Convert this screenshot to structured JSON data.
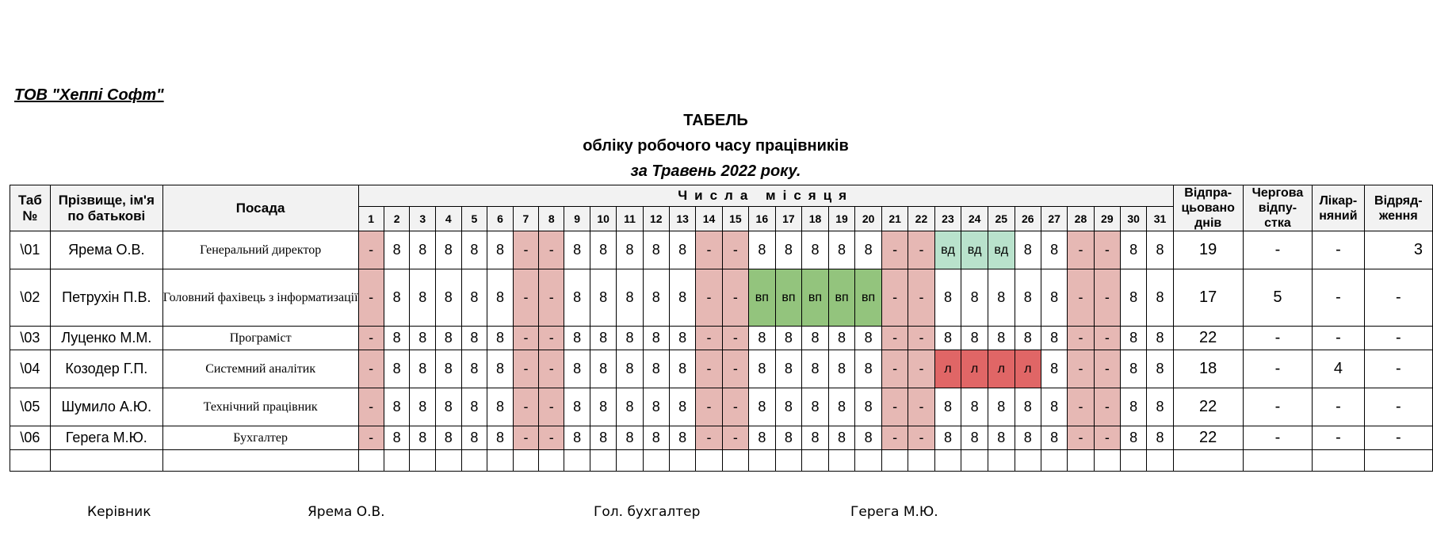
{
  "company": "ТОВ \"Хеппі Софт\"",
  "title": {
    "line1": "ТАБЕЛЬ",
    "line2": "обліку робочого часу працівників",
    "line3": "за Травень 2022 року."
  },
  "headers": {
    "tab_no_1": "Таб",
    "tab_no_2": "№",
    "name_1": "Прізвище, ім'я",
    "name_2": "по батькові",
    "position": "Посада",
    "days_group": "Числа місяця",
    "worked_1": "Відпра-",
    "worked_2": "цьовано",
    "worked_3": "днів",
    "vacation_1": "Чергова",
    "vacation_2": "відпу-",
    "vacation_3": "стка",
    "sick_1": "Лікар-",
    "sick_2": "няний",
    "trip_1": "Відряд-",
    "trip_2": "ження",
    "days": [
      "1",
      "2",
      "3",
      "4",
      "5",
      "6",
      "7",
      "8",
      "9",
      "10",
      "11",
      "12",
      "13",
      "14",
      "15",
      "16",
      "17",
      "18",
      "19",
      "20",
      "21",
      "22",
      "23",
      "24",
      "25",
      "26",
      "27",
      "28",
      "29",
      "30",
      "31"
    ]
  },
  "rows": [
    {
      "tab": "\\01",
      "name": "Ярема О.В.",
      "position": "Генеральний директор",
      "days": [
        "-",
        "8",
        "8",
        "8",
        "8",
        "8",
        "-",
        "-",
        "8",
        "8",
        "8",
        "8",
        "8",
        "-",
        "-",
        "8",
        "8",
        "8",
        "8",
        "8",
        "-",
        "-",
        "вд",
        "вд",
        "вд",
        "8",
        "8",
        "-",
        "-",
        "8",
        "8"
      ],
      "worked": "19",
      "vacation": "-",
      "sick": "-",
      "trip": "3"
    },
    {
      "tab": "\\02",
      "name": "Петрухін П.В.",
      "position": "Головний фахівець з інформатизації",
      "days": [
        "-",
        "8",
        "8",
        "8",
        "8",
        "8",
        "-",
        "-",
        "8",
        "8",
        "8",
        "8",
        "8",
        "-",
        "-",
        "вп",
        "вп",
        "вп",
        "вп",
        "вп",
        "-",
        "-",
        "8",
        "8",
        "8",
        "8",
        "8",
        "-",
        "-",
        "8",
        "8"
      ],
      "worked": "17",
      "vacation": "5",
      "sick": "-",
      "trip": "-"
    },
    {
      "tab": "\\03",
      "name": "Луценко М.М.",
      "position": "Програміст",
      "days": [
        "-",
        "8",
        "8",
        "8",
        "8",
        "8",
        "-",
        "-",
        "8",
        "8",
        "8",
        "8",
        "8",
        "-",
        "-",
        "8",
        "8",
        "8",
        "8",
        "8",
        "-",
        "-",
        "8",
        "8",
        "8",
        "8",
        "8",
        "-",
        "-",
        "8",
        "8"
      ],
      "worked": "22",
      "vacation": "-",
      "sick": "-",
      "trip": "-"
    },
    {
      "tab": "\\04",
      "name": "Козодер Г.П.",
      "position": "Системний аналітик",
      "days": [
        "-",
        "8",
        "8",
        "8",
        "8",
        "8",
        "-",
        "-",
        "8",
        "8",
        "8",
        "8",
        "8",
        "-",
        "-",
        "8",
        "8",
        "8",
        "8",
        "8",
        "-",
        "-",
        "л",
        "л",
        "л",
        "л",
        "8",
        "-",
        "-",
        "8",
        "8"
      ],
      "worked": "18",
      "vacation": "-",
      "sick": "4",
      "trip": "-"
    },
    {
      "tab": "\\05",
      "name": "Шумило А.Ю.",
      "position": "Технічний працівник",
      "days": [
        "-",
        "8",
        "8",
        "8",
        "8",
        "8",
        "-",
        "-",
        "8",
        "8",
        "8",
        "8",
        "8",
        "-",
        "-",
        "8",
        "8",
        "8",
        "8",
        "8",
        "-",
        "-",
        "8",
        "8",
        "8",
        "8",
        "8",
        "-",
        "-",
        "8",
        "8"
      ],
      "worked": "22",
      "vacation": "-",
      "sick": "-",
      "trip": "-"
    },
    {
      "tab": "\\06",
      "name": "Герега М.Ю.",
      "position": "Бухгалтер",
      "days": [
        "-",
        "8",
        "8",
        "8",
        "8",
        "8",
        "-",
        "-",
        "8",
        "8",
        "8",
        "8",
        "8",
        "-",
        "-",
        "8",
        "8",
        "8",
        "8",
        "8",
        "-",
        "-",
        "8",
        "8",
        "8",
        "8",
        "8",
        "-",
        "-",
        "8",
        "8"
      ],
      "worked": "22",
      "vacation": "-",
      "sick": "-",
      "trip": "-"
    }
  ],
  "signatures": {
    "head_label": "Керівник",
    "head_name": "Ярема О.В.",
    "accountant_label": "Гол. бухгалтер",
    "accountant_name": "Герега М.Ю."
  },
  "colors": {
    "weekend": "#e6b8b4",
    "business_trip": "#b9e2cc",
    "vacation": "#93c47d",
    "sick_leave": "#e06666",
    "header_bg": "#f2f2f2"
  }
}
